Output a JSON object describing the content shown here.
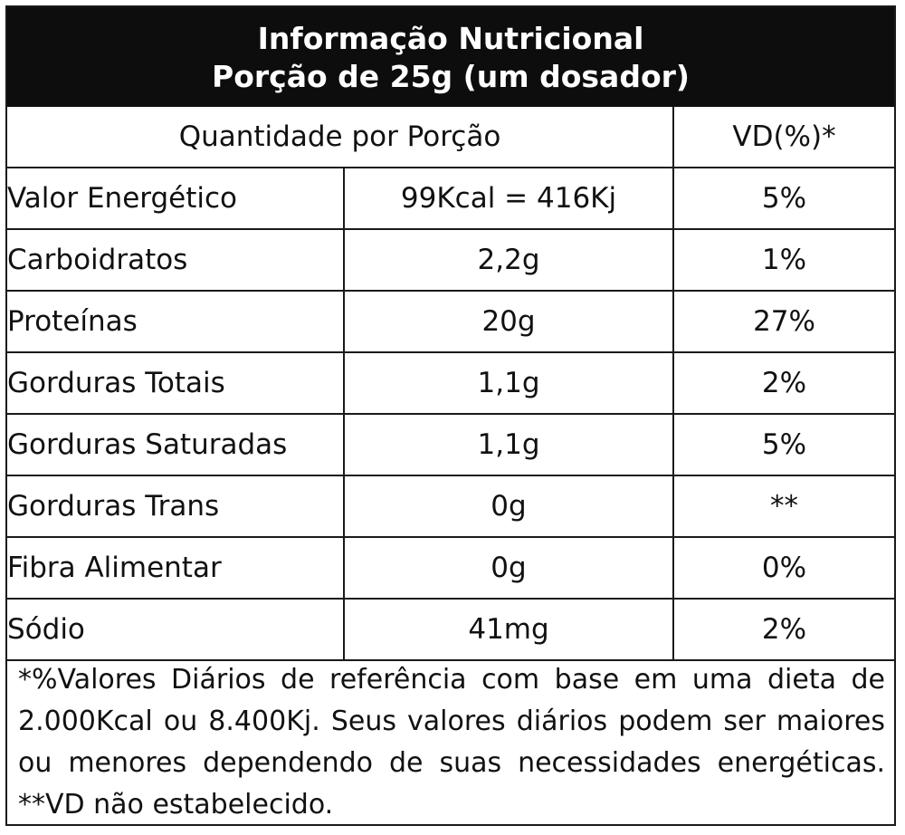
{
  "header": {
    "title": "Informação Nutricional",
    "serving": "Porção de 25g (um dosador)"
  },
  "columns": {
    "quantity_header": "Quantidade por Porção",
    "vd_header": "VD(%)*"
  },
  "rows": [
    {
      "nutrient": "Valor Energético",
      "amount": "99Kcal = 416Kj",
      "vd": "5%"
    },
    {
      "nutrient": "Carboidratos",
      "amount": "2,2g",
      "vd": "1%"
    },
    {
      "nutrient": "Proteínas",
      "amount": "20g",
      "vd": "27%"
    },
    {
      "nutrient": "Gorduras Totais",
      "amount": "1,1g",
      "vd": "2%"
    },
    {
      "nutrient": "Gorduras Saturadas",
      "amount": "1,1g",
      "vd": "5%"
    },
    {
      "nutrient": "Gorduras Trans",
      "amount": "0g",
      "vd": "**"
    },
    {
      "nutrient": "Fibra Alimentar",
      "amount": "0g",
      "vd": "0%"
    },
    {
      "nutrient": "Sódio",
      "amount": "41mg",
      "vd": "2%"
    }
  ],
  "footnote": "*%Valores Diários de referência com base em uma dieta de 2.000Kcal ou 8.400Kj. Seus valores diários podem ser maiores ou menores dependendo de suas necessidades energéticas. **VD não estabelecido."
}
